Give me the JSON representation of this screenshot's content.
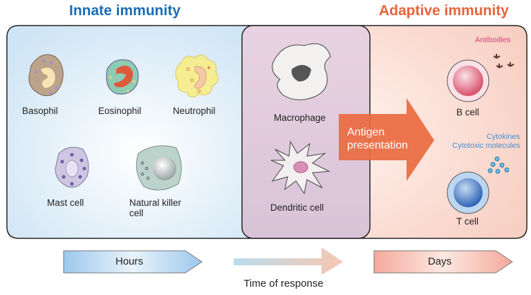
{
  "headings": {
    "innate": "Innate immunity",
    "adaptive": "Adaptive immunity"
  },
  "cells": {
    "basophil": "Basophil",
    "eosinophil": "Eosinophil",
    "neutrophil": "Neutrophil",
    "mast_cell": "Mast cell",
    "nk_cell_line1": "Natural killer",
    "nk_cell_line2": "cell",
    "macrophage": "Macrophage",
    "dendritic_cell": "Dendritic cell",
    "b_cell": "B cell",
    "t_cell": "T cell"
  },
  "annotations": {
    "antibodies": "Antibodies",
    "cytokines": "Cytokines",
    "cytotoxic": "Cytotoxic molecules",
    "antigen_line1": "Antigen",
    "antigen_line2": "presentation"
  },
  "timeline": {
    "hours": "Hours",
    "days": "Days",
    "axis_label": "Time of response"
  },
  "colors": {
    "innate": "#1a6db5",
    "adaptive": "#e8643a",
    "antibodies": "#d6457a",
    "cytokines": "#4a8fd0"
  }
}
